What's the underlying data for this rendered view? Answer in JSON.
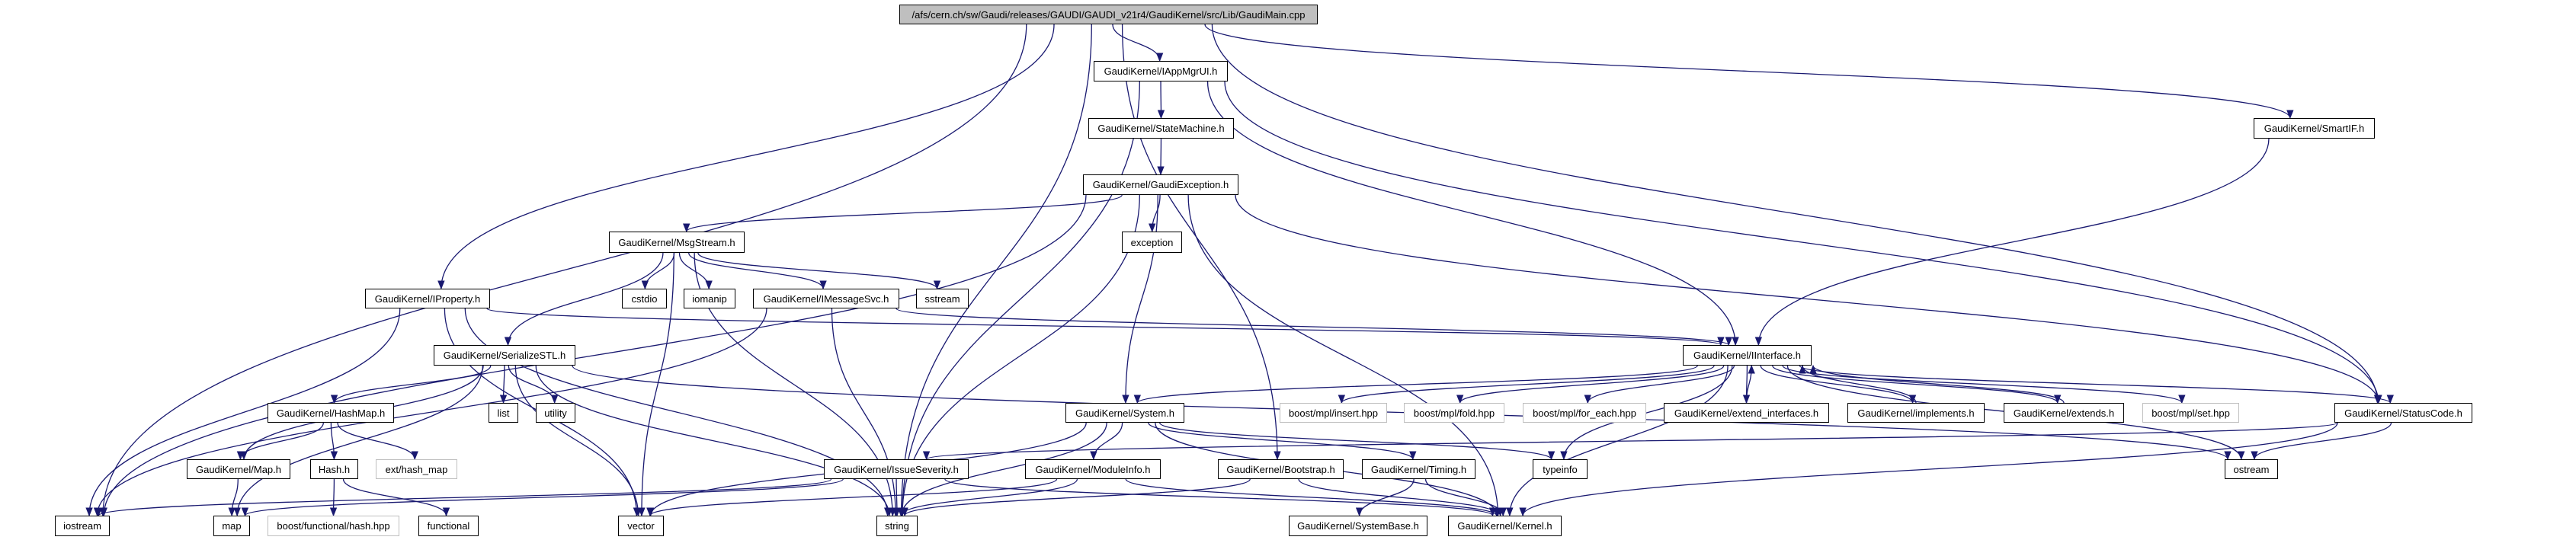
{
  "colors": {
    "edge": "#191970",
    "root_fill": "#bfbfbf",
    "node_border": "#000000",
    "external_border": "#bfbfbf"
  },
  "nodes": [
    {
      "id": "root",
      "label": "/afs/cern.ch/sw/Gaudi/releases/GAUDI/GAUDI_v21r4/GaudiKernel/src/Lib/GaudiMain.cpp",
      "kind": "root"
    },
    {
      "id": "iappmgrui",
      "label": "GaudiKernel/IAppMgrUI.h",
      "kind": "documented"
    },
    {
      "id": "statemachine",
      "label": "GaudiKernel/StateMachine.h",
      "kind": "documented"
    },
    {
      "id": "gaudiexception",
      "label": "GaudiKernel/GaudiException.h",
      "kind": "documented"
    },
    {
      "id": "smartif",
      "label": "GaudiKernel/SmartIF.h",
      "kind": "documented"
    },
    {
      "id": "msgstream",
      "label": "GaudiKernel/MsgStream.h",
      "kind": "documented"
    },
    {
      "id": "exception",
      "label": "exception",
      "kind": "documented"
    },
    {
      "id": "iproperty",
      "label": "GaudiKernel/IProperty.h",
      "kind": "documented"
    },
    {
      "id": "cstdio",
      "label": "cstdio",
      "kind": "documented"
    },
    {
      "id": "iomanip",
      "label": "iomanip",
      "kind": "documented"
    },
    {
      "id": "imessagesvc",
      "label": "GaudiKernel/IMessageSvc.h",
      "kind": "documented"
    },
    {
      "id": "sstream",
      "label": "sstream",
      "kind": "documented"
    },
    {
      "id": "serializestl",
      "label": "GaudiKernel/SerializeSTL.h",
      "kind": "documented"
    },
    {
      "id": "iinterface",
      "label": "GaudiKernel/IInterface.h",
      "kind": "documented"
    },
    {
      "id": "hashmap",
      "label": "GaudiKernel/HashMap.h",
      "kind": "documented"
    },
    {
      "id": "list",
      "label": "list",
      "kind": "documented"
    },
    {
      "id": "utility",
      "label": "utility",
      "kind": "documented"
    },
    {
      "id": "system",
      "label": "GaudiKernel/System.h",
      "kind": "documented"
    },
    {
      "id": "insert",
      "label": "boost/mpl/insert.hpp",
      "kind": "external"
    },
    {
      "id": "fold",
      "label": "boost/mpl/fold.hpp",
      "kind": "external"
    },
    {
      "id": "foreach",
      "label": "boost/mpl/for_each.hpp",
      "kind": "external"
    },
    {
      "id": "extendinterfaces",
      "label": "GaudiKernel/extend_interfaces.h",
      "kind": "documented"
    },
    {
      "id": "implements",
      "label": "GaudiKernel/implements.h",
      "kind": "documented"
    },
    {
      "id": "extends",
      "label": "GaudiKernel/extends.h",
      "kind": "documented"
    },
    {
      "id": "set",
      "label": "boost/mpl/set.hpp",
      "kind": "external"
    },
    {
      "id": "statuscode",
      "label": "GaudiKernel/StatusCode.h",
      "kind": "documented"
    },
    {
      "id": "mapk",
      "label": "GaudiKernel/Map.h",
      "kind": "documented"
    },
    {
      "id": "hash",
      "label": "Hash.h",
      "kind": "documented"
    },
    {
      "id": "exthashmap",
      "label": "ext/hash_map",
      "kind": "external"
    },
    {
      "id": "issueseverity",
      "label": "GaudiKernel/IssueSeverity.h",
      "kind": "documented"
    },
    {
      "id": "moduleinfo",
      "label": "GaudiKernel/ModuleInfo.h",
      "kind": "documented"
    },
    {
      "id": "bootstrap",
      "label": "GaudiKernel/Bootstrap.h",
      "kind": "documented"
    },
    {
      "id": "timing",
      "label": "GaudiKernel/Timing.h",
      "kind": "documented"
    },
    {
      "id": "typeinfo",
      "label": "typeinfo",
      "kind": "documented"
    },
    {
      "id": "ostream",
      "label": "ostream",
      "kind": "documented"
    },
    {
      "id": "iostream",
      "label": "iostream",
      "kind": "documented"
    },
    {
      "id": "map",
      "label": "map",
      "kind": "documented"
    },
    {
      "id": "boosthash",
      "label": "boost/functional/hash.hpp",
      "kind": "external"
    },
    {
      "id": "functional",
      "label": "functional",
      "kind": "documented"
    },
    {
      "id": "vector",
      "label": "vector",
      "kind": "documented"
    },
    {
      "id": "string",
      "label": "string",
      "kind": "documented"
    },
    {
      "id": "systembase",
      "label": "GaudiKernel/SystemBase.h",
      "kind": "documented"
    },
    {
      "id": "kernel",
      "label": "GaudiKernel/Kernel.h",
      "kind": "documented"
    }
  ],
  "edges": [
    [
      "root",
      "iostream"
    ],
    [
      "root",
      "iproperty"
    ],
    [
      "root",
      "string"
    ],
    [
      "root",
      "iappmgrui"
    ],
    [
      "root",
      "smartif"
    ],
    [
      "root",
      "statuscode"
    ],
    [
      "root",
      "bootstrap"
    ],
    [
      "iappmgrui",
      "statemachine"
    ],
    [
      "iappmgrui",
      "string"
    ],
    [
      "iappmgrui",
      "iinterface"
    ],
    [
      "iappmgrui",
      "statuscode"
    ],
    [
      "statemachine",
      "gaudiexception"
    ],
    [
      "gaudiexception",
      "iostream"
    ],
    [
      "gaudiexception",
      "msgstream"
    ],
    [
      "gaudiexception",
      "exception"
    ],
    [
      "gaudiexception",
      "string"
    ],
    [
      "gaudiexception",
      "system"
    ],
    [
      "gaudiexception",
      "statuscode"
    ],
    [
      "gaudiexception",
      "kernel"
    ],
    [
      "msgstream",
      "serializestl"
    ],
    [
      "msgstream",
      "cstdio"
    ],
    [
      "msgstream",
      "iomanip"
    ],
    [
      "msgstream",
      "imessagesvc"
    ],
    [
      "msgstream",
      "sstream"
    ],
    [
      "msgstream",
      "vector"
    ],
    [
      "msgstream",
      "string"
    ],
    [
      "iproperty",
      "iostream"
    ],
    [
      "iproperty",
      "vector"
    ],
    [
      "iproperty",
      "string"
    ],
    [
      "iproperty",
      "iinterface"
    ],
    [
      "imessagesvc",
      "iostream"
    ],
    [
      "imessagesvc",
      "string"
    ],
    [
      "imessagesvc",
      "iinterface"
    ],
    [
      "serializestl",
      "hashmap"
    ],
    [
      "serializestl",
      "list"
    ],
    [
      "serializestl",
      "utility"
    ],
    [
      "serializestl",
      "mapk"
    ],
    [
      "serializestl",
      "map"
    ],
    [
      "serializestl",
      "vector"
    ],
    [
      "serializestl",
      "string"
    ],
    [
      "serializestl",
      "ostream"
    ],
    [
      "hashmap",
      "mapk"
    ],
    [
      "hashmap",
      "hash"
    ],
    [
      "hashmap",
      "exthashmap"
    ],
    [
      "mapk",
      "map"
    ],
    [
      "hash",
      "boosthash"
    ],
    [
      "hash",
      "functional"
    ],
    [
      "system",
      "vector"
    ],
    [
      "system",
      "string"
    ],
    [
      "system",
      "moduleinfo"
    ],
    [
      "system",
      "typeinfo"
    ],
    [
      "system",
      "kernel"
    ],
    [
      "system",
      "timing"
    ],
    [
      "issueseverity",
      "iostream"
    ],
    [
      "issueseverity",
      "map"
    ],
    [
      "issueseverity",
      "string"
    ],
    [
      "issueseverity",
      "kernel"
    ],
    [
      "moduleinfo",
      "vector"
    ],
    [
      "moduleinfo",
      "string"
    ],
    [
      "moduleinfo",
      "kernel"
    ],
    [
      "bootstrap",
      "string"
    ],
    [
      "bootstrap",
      "kernel"
    ],
    [
      "timing",
      "systembase"
    ],
    [
      "timing",
      "kernel"
    ],
    [
      "iinterface",
      "system"
    ],
    [
      "iinterface",
      "insert"
    ],
    [
      "iinterface",
      "fold"
    ],
    [
      "iinterface",
      "foreach"
    ],
    [
      "iinterface",
      "extendinterfaces"
    ],
    [
      "iinterface",
      "implements"
    ],
    [
      "iinterface",
      "extends"
    ],
    [
      "iinterface",
      "set"
    ],
    [
      "iinterface",
      "statuscode"
    ],
    [
      "iinterface",
      "ostream"
    ],
    [
      "iinterface",
      "kernel"
    ],
    [
      "iinterface",
      "typeinfo"
    ],
    [
      "extendinterfaces",
      "iinterface"
    ],
    [
      "implements",
      "iinterface"
    ],
    [
      "extends",
      "iinterface"
    ],
    [
      "statuscode",
      "issueseverity"
    ],
    [
      "statuscode",
      "ostream"
    ],
    [
      "statuscode",
      "kernel"
    ],
    [
      "smartif",
      "iinterface"
    ]
  ]
}
